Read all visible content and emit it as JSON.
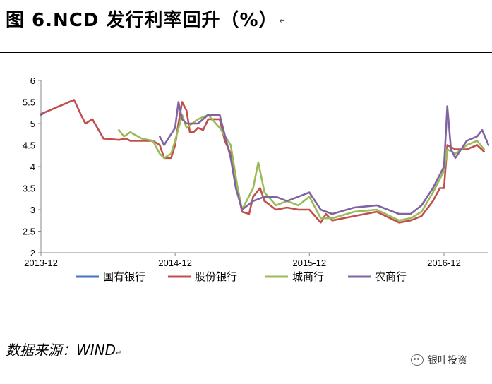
{
  "title": "图 6.NCD 发行利率回升（%）",
  "source": "数据来源：WIND",
  "watermark": "银叶投资",
  "chart_data": {
    "type": "line",
    "ylim": [
      2,
      6
    ],
    "yticks": [
      "2",
      "2.5",
      "3",
      "3.5",
      "4",
      "4.5",
      "5",
      "5.5",
      "6"
    ],
    "xticks": [
      "2013-12",
      "2014-12",
      "2015-12",
      "2016-12"
    ],
    "x_range": [
      "2013-12",
      "2017-04"
    ],
    "legend_position": "bottom",
    "series": [
      {
        "name": "国有银行",
        "color": "#4472C4",
        "points": [
          [
            "2013-12",
            5.2
          ],
          [
            "2013-12-10",
            5.25
          ]
        ]
      },
      {
        "name": "股份银行",
        "color": "#C0504D",
        "points": [
          [
            "2013-12",
            5.22
          ],
          [
            "2014-03",
            5.55
          ],
          [
            "2014-03-20",
            5.2
          ],
          [
            "2014-04",
            5.0
          ],
          [
            "2014-04-20",
            5.1
          ],
          [
            "2014-05-20",
            4.65
          ],
          [
            "2014-07",
            4.62
          ],
          [
            "2014-07-20",
            4.65
          ],
          [
            "2014-08",
            4.6
          ],
          [
            "2014-09",
            4.6
          ],
          [
            "2014-10",
            4.6
          ],
          [
            "2014-10-20",
            4.5
          ],
          [
            "2014-11",
            4.2
          ],
          [
            "2014-11-20",
            4.2
          ],
          [
            "2014-12",
            4.5
          ],
          [
            "2014-12-10",
            5.0
          ],
          [
            "2014-12-20",
            5.5
          ],
          [
            "2015-01",
            5.3
          ],
          [
            "2015-01-10",
            4.8
          ],
          [
            "2015-01-20",
            4.8
          ],
          [
            "2015-02",
            4.9
          ],
          [
            "2015-02-15",
            4.85
          ],
          [
            "2015-03",
            5.1
          ],
          [
            "2015-04",
            5.1
          ],
          [
            "2015-04-15",
            4.6
          ],
          [
            "2015-05",
            4.3
          ],
          [
            "2015-05-15",
            3.6
          ],
          [
            "2015-06",
            2.95
          ],
          [
            "2015-06-20",
            2.9
          ],
          [
            "2015-07",
            3.3
          ],
          [
            "2015-07-20",
            3.5
          ],
          [
            "2015-08",
            3.2
          ],
          [
            "2015-09",
            3.0
          ],
          [
            "2015-10",
            3.05
          ],
          [
            "2015-11",
            3.0
          ],
          [
            "2015-12",
            3.0
          ],
          [
            "2016-01",
            2.7
          ],
          [
            "2016-01-15",
            2.9
          ],
          [
            "2016-02",
            2.75
          ],
          [
            "2016-04",
            2.85
          ],
          [
            "2016-06",
            2.95
          ],
          [
            "2016-08",
            2.7
          ],
          [
            "2016-09",
            2.75
          ],
          [
            "2016-10",
            2.85
          ],
          [
            "2016-11",
            3.2
          ],
          [
            "2016-11-20",
            3.5
          ],
          [
            "2016-12",
            3.5
          ],
          [
            "2016-12-10",
            4.5
          ],
          [
            "2017-01",
            4.4
          ],
          [
            "2017-02",
            4.4
          ],
          [
            "2017-03",
            4.5
          ],
          [
            "2017-03-20",
            4.35
          ]
        ]
      },
      {
        "name": "城商行",
        "color": "#9BBB59",
        "points": [
          [
            "2014-07",
            4.85
          ],
          [
            "2014-07-15",
            4.7
          ],
          [
            "2014-08",
            4.8
          ],
          [
            "2014-09",
            4.65
          ],
          [
            "2014-10",
            4.6
          ],
          [
            "2014-10-20",
            4.3
          ],
          [
            "2014-11",
            4.2
          ],
          [
            "2014-11-20",
            4.3
          ],
          [
            "2014-12",
            4.6
          ],
          [
            "2014-12-20",
            5.2
          ],
          [
            "2015-01",
            4.9
          ],
          [
            "2015-02",
            5.1
          ],
          [
            "2015-03",
            5.2
          ],
          [
            "2015-04",
            4.9
          ],
          [
            "2015-05",
            4.5
          ],
          [
            "2015-05-20",
            3.5
          ],
          [
            "2015-06",
            3.0
          ],
          [
            "2015-07",
            3.5
          ],
          [
            "2015-07-15",
            4.1
          ],
          [
            "2015-08",
            3.4
          ],
          [
            "2015-09",
            3.1
          ],
          [
            "2015-10",
            3.2
          ],
          [
            "2015-11",
            3.1
          ],
          [
            "2015-12",
            3.3
          ],
          [
            "2016-01",
            2.8
          ],
          [
            "2016-02",
            2.8
          ],
          [
            "2016-04",
            2.95
          ],
          [
            "2016-06",
            3.0
          ],
          [
            "2016-08",
            2.75
          ],
          [
            "2016-09",
            2.8
          ],
          [
            "2016-10",
            2.95
          ],
          [
            "2016-11",
            3.4
          ],
          [
            "2016-12",
            3.9
          ],
          [
            "2016-12-10",
            4.4
          ],
          [
            "2017-01",
            4.3
          ],
          [
            "2017-02",
            4.5
          ],
          [
            "2017-03",
            4.6
          ],
          [
            "2017-03-20",
            4.4
          ]
        ]
      },
      {
        "name": "农商行",
        "color": "#8064A2",
        "points": [
          [
            "2014-10-20",
            4.7
          ],
          [
            "2014-11",
            4.5
          ],
          [
            "2014-12",
            4.9
          ],
          [
            "2014-12-10",
            5.5
          ],
          [
            "2014-12-20",
            5.1
          ],
          [
            "2015-01",
            5.0
          ],
          [
            "2015-02",
            5.0
          ],
          [
            "2015-03",
            5.2
          ],
          [
            "2015-04",
            5.2
          ],
          [
            "2015-05",
            4.2
          ],
          [
            "2015-05-15",
            3.5
          ],
          [
            "2015-06",
            3.0
          ],
          [
            "2015-07",
            3.2
          ],
          [
            "2015-08",
            3.3
          ],
          [
            "2015-09",
            3.3
          ],
          [
            "2015-10",
            3.2
          ],
          [
            "2015-11",
            3.3
          ],
          [
            "2015-12",
            3.4
          ],
          [
            "2016-01",
            3.0
          ],
          [
            "2016-02",
            2.9
          ],
          [
            "2016-04",
            3.05
          ],
          [
            "2016-06",
            3.1
          ],
          [
            "2016-08",
            2.9
          ],
          [
            "2016-09",
            2.9
          ],
          [
            "2016-10",
            3.1
          ],
          [
            "2016-11",
            3.5
          ],
          [
            "2016-12",
            4.0
          ],
          [
            "2016-12-10",
            5.4
          ],
          [
            "2016-12-20",
            4.4
          ],
          [
            "2017-01",
            4.2
          ],
          [
            "2017-02",
            4.6
          ],
          [
            "2017-03",
            4.7
          ],
          [
            "2017-03-15",
            4.85
          ],
          [
            "2017-04",
            4.5
          ]
        ]
      }
    ]
  }
}
